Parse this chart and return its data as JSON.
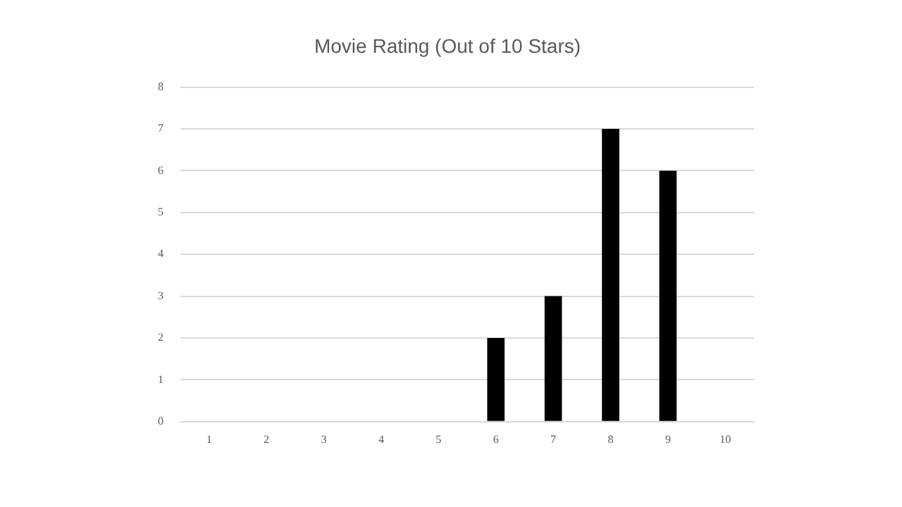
{
  "chart_data": {
    "type": "bar",
    "title": "Movie Rating (Out of 10 Stars)",
    "categories": [
      "1",
      "2",
      "3",
      "4",
      "5",
      "6",
      "7",
      "8",
      "9",
      "10"
    ],
    "values": [
      0,
      0,
      0,
      0,
      0,
      2,
      3,
      7,
      6,
      0
    ],
    "color": "#000000",
    "ylim": [
      0,
      8
    ],
    "yticks": [
      0,
      1,
      2,
      3,
      4,
      5,
      6,
      7,
      8
    ],
    "grid": "y",
    "legend": false
  }
}
